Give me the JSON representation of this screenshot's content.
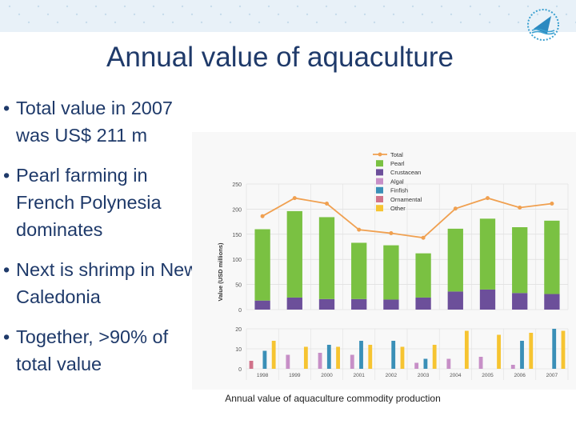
{
  "slide": {
    "title": "Annual value of aquaculture",
    "bullets": [
      "Total value  in 2007 was US$ 211 m",
      "Pearl farming in French Polynesia dominates",
      "Next is shrimp in New Caledonia",
      " Together,  >90% of total value"
    ],
    "caption": "Annual value of aquaculture commodity production",
    "logo_icon": "spc-logo-icon"
  },
  "colors": {
    "title_text": "#1f3a6a",
    "Pearl": "#7ac142",
    "Crustacean": "#6c4f9a",
    "Algal": "#c78fc7",
    "Finfish": "#3a8fb7",
    "Ornamental": "#d0728a",
    "Other": "#f6c431",
    "Total": "#f0a050"
  },
  "chart_data": {
    "type": "bar",
    "categories": [
      "1998",
      "1999",
      "2000",
      "2001",
      "2002",
      "2003",
      "2004",
      "2005",
      "2006",
      "2007"
    ],
    "ylabel": "Value (USD millions)",
    "legend": [
      "Total",
      "Pearl",
      "Crustacean",
      "Algal",
      "Finfish",
      "Ornamental",
      "Other"
    ],
    "legend_position": "top-right",
    "top_panel": {
      "ylim": [
        0,
        250
      ],
      "yticks": [
        "250",
        "200",
        "150",
        "100",
        "50",
        "0"
      ],
      "yticks_values": [
        250,
        200,
        150,
        100,
        50,
        0
      ],
      "series": [
        {
          "name": "Crustacean",
          "values": [
            18,
            24,
            21,
            21,
            20,
            24,
            36,
            40,
            33,
            31
          ]
        },
        {
          "name": "Pearl",
          "values": [
            142,
            172,
            163,
            112,
            108,
            88,
            125,
            141,
            131,
            146
          ]
        }
      ],
      "line": {
        "name": "Total",
        "values": [
          186,
          222,
          211,
          159,
          152,
          143,
          201,
          222,
          203,
          211
        ]
      }
    },
    "bottom_panel": {
      "ylim": [
        0,
        20
      ],
      "yticks": [
        "20",
        "10",
        "0"
      ],
      "yticks_values": [
        20,
        10,
        0
      ],
      "series": [
        {
          "name": "Ornamental",
          "values": [
            4,
            0,
            0,
            0,
            0,
            0,
            0,
            0,
            0,
            0
          ]
        },
        {
          "name": "Algal",
          "values": [
            0,
            7,
            8,
            7,
            0,
            3,
            5,
            6,
            2,
            0
          ]
        },
        {
          "name": "Crustacean",
          "values": [
            0,
            0,
            0,
            0,
            0,
            0,
            0,
            0,
            0,
            0
          ]
        },
        {
          "name": "Finfish",
          "values": [
            9,
            0,
            12,
            14,
            14,
            5,
            0,
            0,
            14,
            20
          ]
        },
        {
          "name": "Pearl",
          "values": [
            0,
            0,
            0,
            0,
            0,
            0,
            0,
            0,
            0,
            0
          ]
        },
        {
          "name": "Other",
          "values": [
            14,
            11,
            11,
            12,
            11,
            12,
            19,
            17,
            18,
            19
          ]
        }
      ]
    }
  }
}
